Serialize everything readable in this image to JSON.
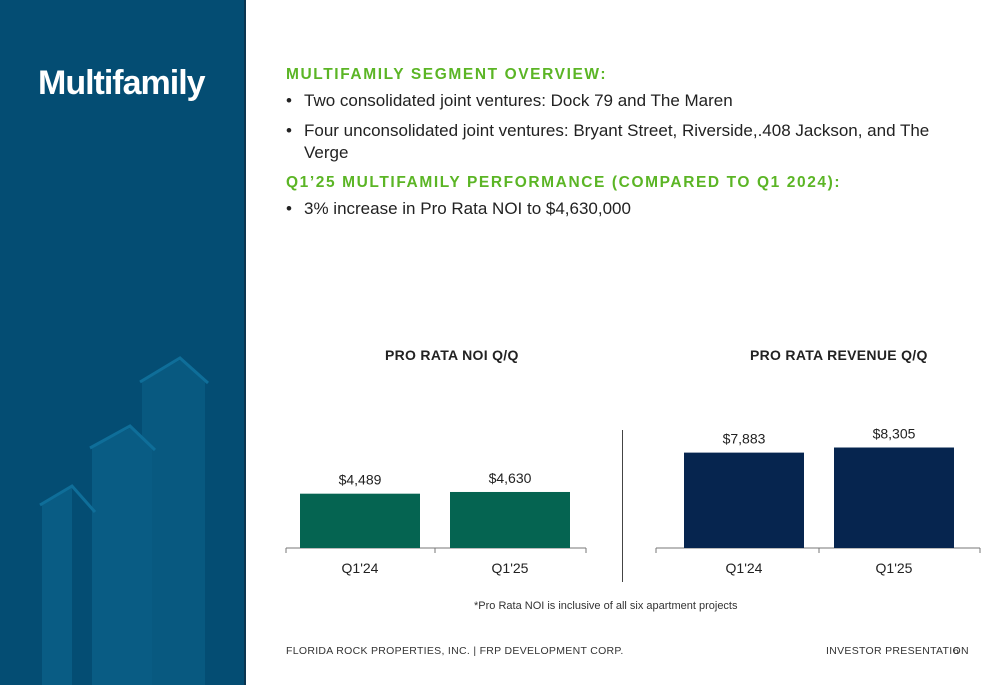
{
  "sidebar": {
    "title": "Multifamily"
  },
  "overview": {
    "heading": "MULTIFAMILY SEGMENT OVERVIEW:",
    "bullets": [
      "Two consolidated joint ventures: Dock 79 and The Maren",
      "Four unconsolidated joint ventures: Bryant Street, Riverside,.408 Jackson, and The Verge"
    ]
  },
  "performance": {
    "heading": "Q1’25 MULTIFAMILY PERFORMANCE (COMPARED TO Q1 2024):",
    "bullets": [
      "3% increase in Pro Rata NOI to $4,630,000"
    ]
  },
  "chart_data": [
    {
      "type": "bar",
      "title": "PRO RATA NOI Q/Q",
      "categories": [
        "Q1'24",
        "Q1'25"
      ],
      "values": [
        4489,
        4630
      ],
      "labels": [
        "$4,489",
        "$4,630"
      ],
      "color": "#056451",
      "ylim": [
        0,
        10000
      ]
    },
    {
      "type": "bar",
      "title": "PRO RATA REVENUE Q/Q",
      "categories": [
        "Q1'24",
        "Q1'25"
      ],
      "values": [
        7883,
        8305
      ],
      "labels": [
        "$7,883",
        "$8,305"
      ],
      "color": "#06254f",
      "ylim": [
        0,
        10000
      ]
    }
  ],
  "footnote": "*Pro Rata NOI is inclusive of all six apartment projects",
  "footer": {
    "left": "FLORIDA ROCK PROPERTIES, INC. | FRP DEVELOPMENT CORP.",
    "right": "INVESTOR PRESENTATION",
    "page": "6"
  },
  "colors": {
    "sidebar": "#044d73",
    "accent": "#5bb525"
  }
}
